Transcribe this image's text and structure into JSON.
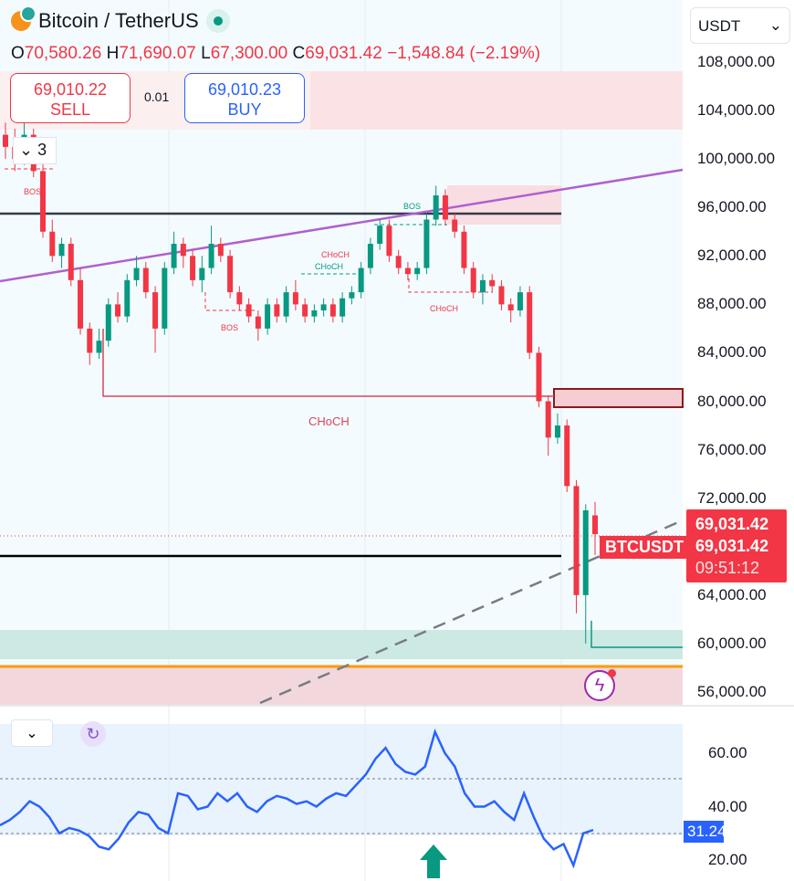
{
  "header": {
    "title": "Bitcoin / TetherUS",
    "currency": "USDT",
    "ohlc": {
      "o_label": "O",
      "o": "70,580.26",
      "h_label": "H",
      "h": "71,690.07",
      "l_label": "L",
      "l": "67,300.00",
      "c_label": "C",
      "c": "69,031.42",
      "change": "−1,548.84 (−2.19%)"
    }
  },
  "trade": {
    "sell_price": "69,010.22",
    "sell_label": "SELL",
    "spread": "0.01",
    "buy_price": "69,010.23",
    "buy_label": "BUY"
  },
  "indicators_toggle": "3",
  "price_tag": {
    "symbol": "BTCUSDT",
    "price": "69,031.42",
    "last": "69,031.42",
    "countdown": "09:51:12"
  },
  "rsi_tag": "31.24",
  "annotations": [
    "BOS",
    "BOS",
    "BOS",
    "CHoCH",
    "CHoCH",
    "CHoCH",
    "CHoCH"
  ],
  "colors": {
    "up": "#089981",
    "down": "#f23645",
    "rsi": "#2962ff",
    "trendline": "#b05fcf"
  },
  "chart_data": [
    {
      "type": "candlestick",
      "title": "Bitcoin / TetherUS",
      "ylim": [
        55000,
        110000
      ],
      "y_ticks": [
        "108,000.00",
        "104,000.00",
        "100,000.00",
        "96,000.00",
        "92,000.00",
        "88,000.00",
        "84,000.00",
        "80,000.00",
        "76,000.00",
        "72,000.00",
        "64,000.00",
        "60,000.00",
        "56,000.00"
      ],
      "candles_ohlc": [
        [
          102000,
          103000,
          100000,
          101000
        ],
        [
          101000,
          102500,
          99000,
          100000
        ],
        [
          100000,
          103000,
          99500,
          102000
        ],
        [
          102000,
          102500,
          98500,
          99000
        ],
        [
          99000,
          100000,
          93500,
          94000
        ],
        [
          94000,
          95000,
          91500,
          92000
        ],
        [
          92000,
          93500,
          91000,
          93000
        ],
        [
          93000,
          93500,
          89500,
          90000
        ],
        [
          90000,
          91000,
          85500,
          86000
        ],
        [
          86000,
          86500,
          83000,
          84000
        ],
        [
          84000,
          86000,
          83500,
          85000
        ],
        [
          85000,
          88500,
          84500,
          88000
        ],
        [
          88000,
          89000,
          86500,
          87000
        ],
        [
          87000,
          90500,
          86500,
          90000
        ],
        [
          90000,
          92000,
          89500,
          91000
        ],
        [
          91000,
          91500,
          88500,
          89000
        ],
        [
          89000,
          89500,
          84000,
          86000
        ],
        [
          86000,
          91500,
          85500,
          91000
        ],
        [
          91000,
          94000,
          90500,
          93000
        ],
        [
          93000,
          93500,
          91000,
          92000
        ],
        [
          92000,
          92500,
          89500,
          90000
        ],
        [
          90000,
          92000,
          89000,
          91000
        ],
        [
          91000,
          94500,
          90500,
          93000
        ],
        [
          93000,
          93500,
          91500,
          92000
        ],
        [
          92000,
          92500,
          88500,
          89000
        ],
        [
          89000,
          89500,
          87500,
          88000
        ],
        [
          88000,
          88500,
          86500,
          87000
        ],
        [
          87000,
          87500,
          85000,
          86000
        ],
        [
          86000,
          88500,
          85500,
          88000
        ],
        [
          88000,
          88500,
          86500,
          87000
        ],
        [
          87000,
          89500,
          86500,
          89000
        ],
        [
          89000,
          90000,
          87500,
          88000
        ],
        [
          88000,
          88500,
          86500,
          87000
        ],
        [
          87000,
          88000,
          86500,
          87500
        ],
        [
          87500,
          88500,
          87000,
          88000
        ],
        [
          88000,
          88500,
          86500,
          87000
        ],
        [
          87000,
          89000,
          86500,
          88500
        ],
        [
          88500,
          89500,
          88000,
          89000
        ],
        [
          89000,
          91500,
          88500,
          91000
        ],
        [
          91000,
          93500,
          90500,
          93000
        ],
        [
          93000,
          95000,
          92500,
          94500
        ],
        [
          94500,
          95000,
          91500,
          92000
        ],
        [
          92000,
          92500,
          90500,
          91000
        ],
        [
          91000,
          91500,
          90000,
          90500
        ],
        [
          90500,
          91500,
          90000,
          91000
        ],
        [
          91000,
          95500,
          90500,
          95000
        ],
        [
          95000,
          97800,
          94500,
          97000
        ],
        [
          97000,
          97500,
          94500,
          95000
        ],
        [
          95000,
          95500,
          93500,
          94000
        ],
        [
          94000,
          94500,
          90500,
          91000
        ],
        [
          91000,
          91500,
          88500,
          89000
        ],
        [
          89000,
          90500,
          88000,
          90000
        ],
        [
          90000,
          90500,
          89000,
          89500
        ],
        [
          89500,
          90000,
          87500,
          88000
        ],
        [
          88000,
          88500,
          86500,
          87500
        ],
        [
          87500,
          89500,
          87000,
          89000
        ],
        [
          89000,
          89500,
          83500,
          84000
        ],
        [
          84000,
          84500,
          79500,
          80000
        ],
        [
          80000,
          80500,
          75500,
          77000
        ],
        [
          77000,
          79000,
          76500,
          78000
        ],
        [
          78000,
          78500,
          72500,
          73000
        ],
        [
          73000,
          73500,
          62500,
          64000
        ],
        [
          64000,
          71500,
          60000,
          71000
        ],
        [
          70580.26,
          71690.07,
          67300,
          69031.42
        ]
      ]
    },
    {
      "type": "line",
      "series": [
        {
          "name": "RSI",
          "values": [
            33,
            35,
            38,
            42,
            40,
            36,
            30,
            32,
            31,
            29,
            25,
            24,
            28,
            34,
            38,
            37,
            32,
            30,
            45,
            44,
            39,
            40,
            45,
            42,
            45,
            40,
            38,
            42,
            44,
            43,
            41,
            42,
            40,
            43,
            45,
            44,
            48,
            52,
            58,
            62,
            56,
            53,
            52,
            55,
            68,
            60,
            55,
            45,
            40,
            40,
            42,
            38,
            35,
            45,
            36,
            28,
            24,
            26,
            18,
            30,
            31.24
          ]
        }
      ],
      "ylim": [
        15,
        75
      ],
      "y_ticks": [
        "60.00",
        "40.00",
        "20.00"
      ]
    }
  ]
}
